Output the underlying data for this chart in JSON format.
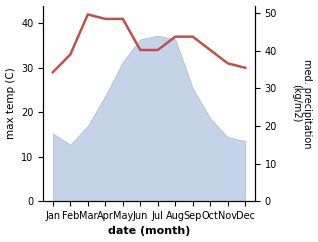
{
  "months": [
    "Jan",
    "Feb",
    "Mar",
    "Apr",
    "May",
    "Jun",
    "Jul",
    "Aug",
    "Sep",
    "Oct",
    "Nov",
    "Dec"
  ],
  "temperature": [
    29,
    33,
    42,
    41,
    41,
    34,
    34,
    37,
    37,
    34,
    31,
    30
  ],
  "precipitation": [
    18,
    15,
    20,
    28,
    37,
    43,
    44,
    43,
    30,
    22,
    17,
    16
  ],
  "temp_color": "#c0504d",
  "precip_color_fill": "#c5d3e8",
  "precip_color_edge": "#aab8d0",
  "xlabel": "date (month)",
  "ylabel_left": "max temp (C)",
  "ylabel_right": "med. precipitation\n(kg/m2)",
  "ylim_left": [
    0,
    44
  ],
  "ylim_right": [
    0,
    52
  ],
  "yticks_left": [
    0,
    10,
    20,
    30,
    40
  ],
  "yticks_right": [
    0,
    10,
    20,
    30,
    40,
    50
  ],
  "temp_linewidth": 1.8,
  "bg_color": "#ffffff"
}
